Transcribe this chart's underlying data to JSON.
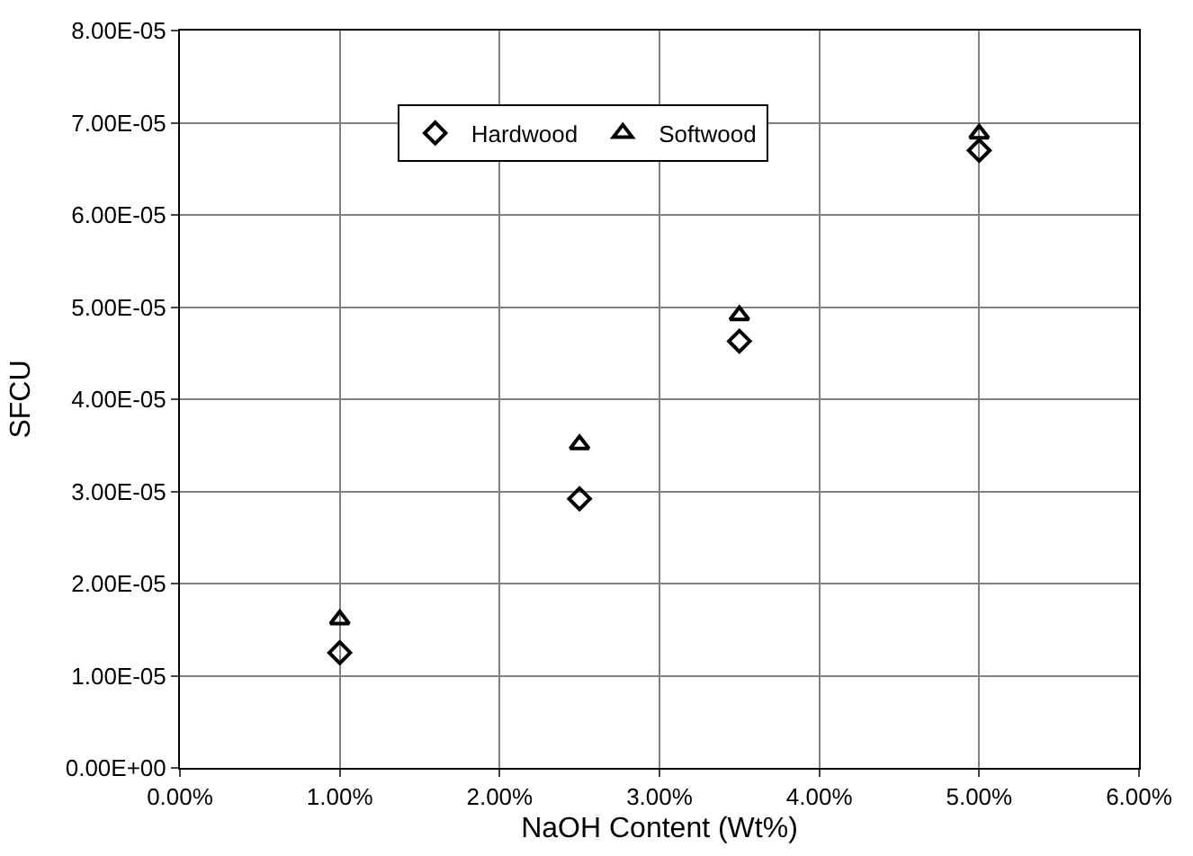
{
  "chart_data": {
    "type": "scatter",
    "xlabel": "NaOH Content (Wt%)",
    "ylabel": "SFCU",
    "x": [
      0.01,
      0.025,
      0.035,
      0.05
    ],
    "series": [
      {
        "name": "Hardwood",
        "color": "#000000",
        "marker": "diamond",
        "values": [
          1.25e-05,
          2.92e-05,
          4.63e-05,
          6.7e-05
        ]
      },
      {
        "name": "Softwood",
        "color": "#000000",
        "marker": "triangle",
        "values": [
          1.61e-05,
          3.51e-05,
          4.91e-05,
          6.88e-05
        ]
      }
    ],
    "xlim": [
      0,
      0.06
    ],
    "xticks": [
      {
        "value": 0,
        "label": "0.00%"
      },
      {
        "value": 0.01,
        "label": "1.00%"
      },
      {
        "value": 0.02,
        "label": "2.00%"
      },
      {
        "value": 0.03,
        "label": "3.00%"
      },
      {
        "value": 0.04,
        "label": "4.00%"
      },
      {
        "value": 0.05,
        "label": "5.00%"
      },
      {
        "value": 0.06,
        "label": "6.00%"
      }
    ],
    "ylim": [
      0,
      8e-05
    ],
    "yticks": [
      {
        "value": 0,
        "label": "0.00E+00"
      },
      {
        "value": 1e-05,
        "label": "1.00E-05"
      },
      {
        "value": 2e-05,
        "label": "2.00E-05"
      },
      {
        "value": 3e-05,
        "label": "3.00E-05"
      },
      {
        "value": 4e-05,
        "label": "4.00E-05"
      },
      {
        "value": 5e-05,
        "label": "5.00E-05"
      },
      {
        "value": 6e-05,
        "label": "6.00E-05"
      },
      {
        "value": 7e-05,
        "label": "7.00E-05"
      },
      {
        "value": 8e-05,
        "label": "8.00E-05"
      }
    ],
    "grid": true,
    "legend": "top"
  }
}
